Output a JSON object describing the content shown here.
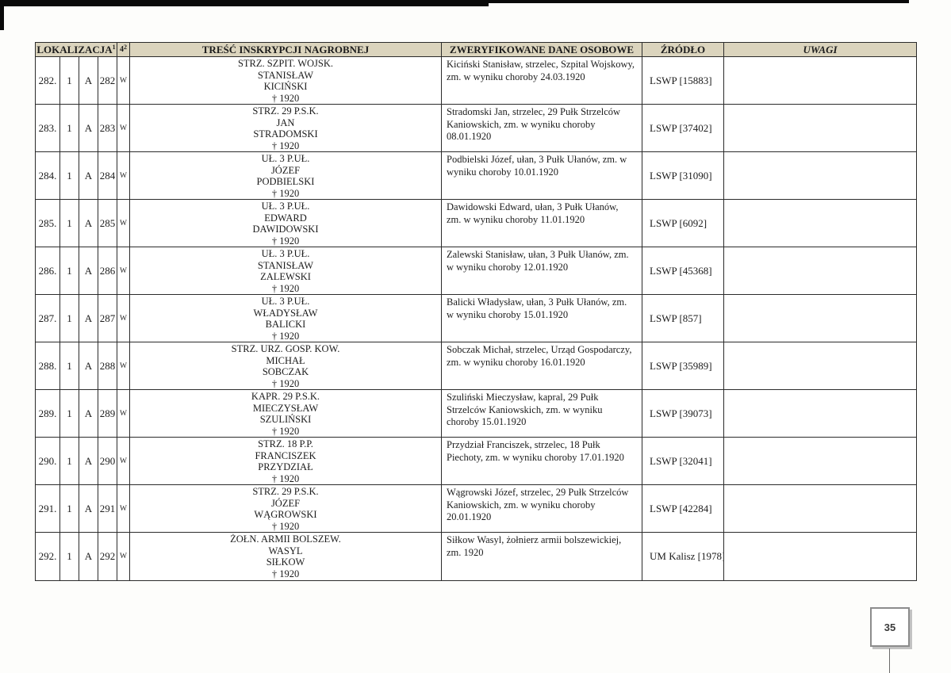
{
  "page": {
    "number": "35"
  },
  "table": {
    "headers": {
      "localization": "LOKALIZACJA",
      "localization_sup": "1",
      "quarter": "4",
      "quarter_sup": "2",
      "inscription": "TREŚĆ INSKRYPCJI NAGROBNEJ",
      "verified": "ZWERYFIKOWANE DANE OSOBOWE",
      "source": "ŹRÓDŁO",
      "remarks": "UWAGI"
    },
    "rows": [
      {
        "ord": "282.",
        "loc1": "1",
        "loc2": "A",
        "loc3": "282",
        "mark": "W",
        "inscription": [
          "STRZ. SZPIT. WOJSK.",
          "STANISŁAW",
          "KICIŃSKI",
          "† 1920"
        ],
        "verified": "Kiciński Stanisław, strzelec, Szpital Wojskowy, zm. w wyniku choroby 24.03.1920",
        "source": "LSWP [15883]",
        "remarks": ""
      },
      {
        "ord": "283.",
        "loc1": "1",
        "loc2": "A",
        "loc3": "283",
        "mark": "W",
        "inscription": [
          "STRZ. 29 P.S.K.",
          "JAN",
          "STRADOMSKI",
          "† 1920"
        ],
        "verified": "Stradomski Jan, strzelec, 29 Pułk Strzelców Kaniowskich, zm. w wyniku choroby 08.01.1920",
        "source": "LSWP [37402]",
        "remarks": ""
      },
      {
        "ord": "284.",
        "loc1": "1",
        "loc2": "A",
        "loc3": "284",
        "mark": "W",
        "inscription": [
          "UŁ. 3 P.UŁ.",
          "JÓZEF",
          "PODBIELSKI",
          "† 1920"
        ],
        "verified": "Podbielski Józef, ułan, 3 Pułk Ułanów, zm. w wyniku choroby 10.01.1920",
        "source": "LSWP [31090]",
        "remarks": ""
      },
      {
        "ord": "285.",
        "loc1": "1",
        "loc2": "A",
        "loc3": "285",
        "mark": "W",
        "inscription": [
          "UŁ. 3 P.UŁ.",
          "EDWARD",
          "DAWIDOWSKI",
          "† 1920"
        ],
        "verified": "Dawidowski Edward, ułan, 3 Pułk Ułanów, zm. w wyniku choroby 11.01.1920",
        "source": "LSWP [6092]",
        "remarks": ""
      },
      {
        "ord": "286.",
        "loc1": "1",
        "loc2": "A",
        "loc3": "286",
        "mark": "W",
        "inscription": [
          "UŁ. 3 P.UŁ.",
          "STANISŁAW",
          "ZALEWSKI",
          "† 1920"
        ],
        "verified": "Zalewski Stanisław, ułan, 3 Pułk Ułanów, zm. w wyniku choroby 12.01.1920",
        "source": "LSWP [45368]",
        "remarks": ""
      },
      {
        "ord": "287.",
        "loc1": "1",
        "loc2": "A",
        "loc3": "287",
        "mark": "W",
        "inscription": [
          "UŁ. 3 P.UŁ.",
          "WŁADYSŁAW",
          "BALICKI",
          "† 1920"
        ],
        "verified": "Balicki Władysław, ułan, 3 Pułk Ułanów, zm. w wyniku choroby 15.01.1920",
        "source": "LSWP [857]",
        "remarks": ""
      },
      {
        "ord": "288.",
        "loc1": "1",
        "loc2": "A",
        "loc3": "288",
        "mark": "W",
        "inscription": [
          "STRZ. URZ. GOSP. KOW.",
          "MICHAŁ",
          "SOBCZAK",
          "† 1920"
        ],
        "verified": "Sobczak Michał, strzelec, Urząd Gospodarczy, zm. w wyniku choroby 16.01.1920",
        "source": "LSWP [35989]",
        "remarks": ""
      },
      {
        "ord": "289.",
        "loc1": "1",
        "loc2": "A",
        "loc3": "289",
        "mark": "W",
        "inscription": [
          "KAPR. 29 P.S.K.",
          "MIECZYSŁAW",
          "SZULIŃSKI",
          "† 1920"
        ],
        "verified": "Szuliński Mieczysław, kapral, 29 Pułk Strzelców Kaniowskich, zm. w wyniku choroby 15.01.1920",
        "source": "LSWP [39073]",
        "remarks": ""
      },
      {
        "ord": "290.",
        "loc1": "1",
        "loc2": "A",
        "loc3": "290",
        "mark": "W",
        "inscription": [
          "STRZ. 18 P.P.",
          "FRANCISZEK",
          "PRZYDZIAŁ",
          "† 1920"
        ],
        "verified": "Przydział Franciszek, strzelec, 18 Pułk Piechoty, zm. w wyniku choroby 17.01.1920",
        "source": "LSWP [32041]",
        "remarks": ""
      },
      {
        "ord": "291.",
        "loc1": "1",
        "loc2": "A",
        "loc3": "291",
        "mark": "W",
        "inscription": [
          "STRZ. 29 P.S.K.",
          "JÓZEF",
          "WĄGROWSKI",
          "† 1920"
        ],
        "verified": "Wągrowski Józef, strzelec, 29 Pułk Strzelców Kaniowskich, zm. w wyniku choroby 20.01.1920",
        "source": "LSWP [42284]",
        "remarks": ""
      },
      {
        "ord": "292.",
        "loc1": "1",
        "loc2": "A",
        "loc3": "292",
        "mark": "W",
        "inscription": [
          "ŻOŁN. ARMII BOLSZEW.",
          "WASYL",
          "SIŁKOW",
          "† 1920"
        ],
        "verified": "Siłkow Wasyl, żołnierz armii bolszewickiej, zm. 1920",
        "source": "UM Kalisz [1978]",
        "remarks": ""
      }
    ]
  }
}
